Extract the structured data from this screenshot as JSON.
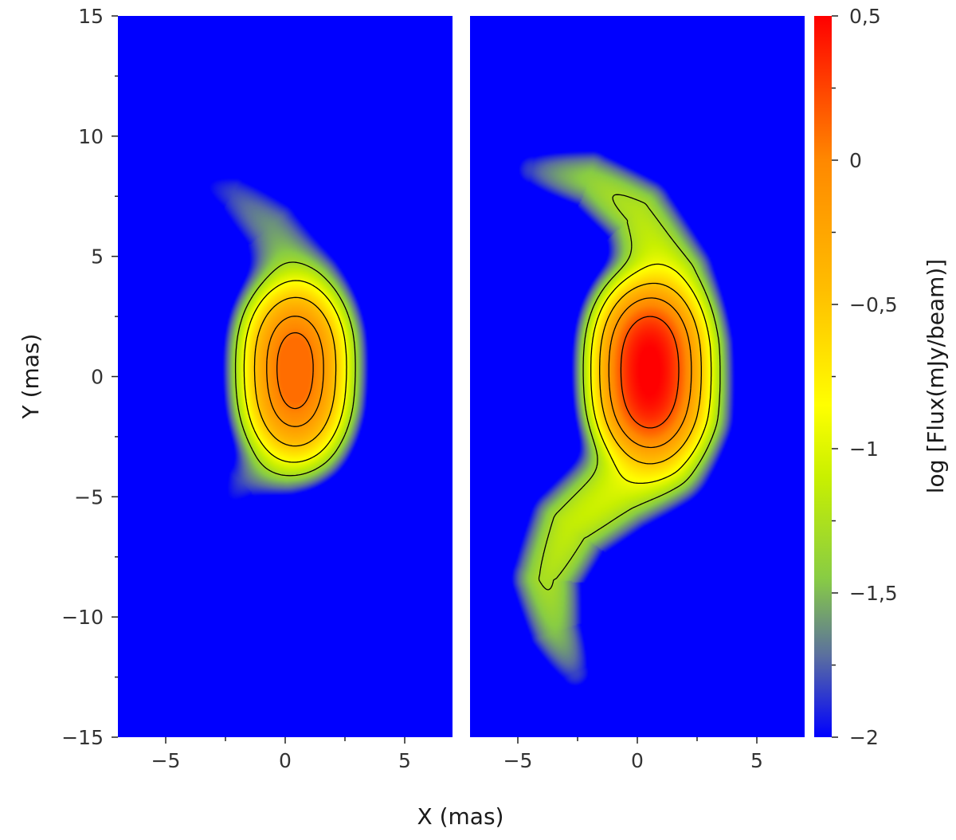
{
  "chart_data": {
    "type": "heatmap",
    "description_scale": "log",
    "panels": [
      {
        "name": "left",
        "xlim": [
          -7,
          7
        ],
        "ylim": [
          -15,
          15
        ],
        "max_log_flux": 0.1,
        "features": [
          {
            "kind": "arc",
            "points": [
              [
                -4.0,
                8.3
              ],
              [
                -2.2,
                7.6
              ],
              [
                -0.6,
                6.2
              ],
              [
                0.6,
                4.0
              ],
              [
                1.2,
                1.6
              ],
              [
                1.2,
                -1.0
              ],
              [
                0.8,
                -2.6
              ],
              [
                -0.4,
                -3.6
              ],
              [
                -1.8,
                -4.4
              ],
              [
                -2.8,
                -5.8
              ]
            ],
            "peak": -1.45
          },
          {
            "kind": "blob",
            "x": 0.4,
            "y": 1.2,
            "peak": 0.1
          },
          {
            "kind": "blob",
            "x": 0.4,
            "y": -0.9,
            "peak": 0.05
          }
        ],
        "contour_levels": [
          -1.3,
          -0.9,
          -0.5,
          -0.15,
          0.05
        ]
      },
      {
        "name": "right",
        "xlim": [
          -7,
          7
        ],
        "ylim": [
          -15,
          15
        ],
        "max_log_flux": 0.5,
        "features": [
          {
            "kind": "arc",
            "points": [
              [
                -4.4,
                8.6
              ],
              [
                -2.0,
                8.2
              ],
              [
                0.0,
                6.8
              ],
              [
                1.3,
                4.2
              ],
              [
                1.8,
                1.2
              ],
              [
                1.8,
                -1.6
              ],
              [
                1.0,
                -3.4
              ],
              [
                -0.8,
                -4.6
              ],
              [
                -2.8,
                -6.2
              ],
              [
                -3.8,
                -8.4
              ],
              [
                -3.4,
                -10.6
              ],
              [
                -2.6,
                -12.3
              ]
            ],
            "peak": -1.0
          },
          {
            "kind": "blob",
            "x": 0.5,
            "y": 1.2,
            "peak": 0.45
          },
          {
            "kind": "blob",
            "x": 0.5,
            "y": -0.9,
            "peak": 0.42
          }
        ],
        "contour_levels": [
          -1.3,
          -0.9,
          -0.5,
          -0.15,
          0.2
        ]
      }
    ],
    "colorbar": {
      "min": -2,
      "max": 0.5,
      "ticks": [
        "0,5",
        "0",
        "−0,5",
        "−1",
        "−1,5",
        "−2"
      ],
      "tick_values": [
        0.5,
        0,
        -0.5,
        -1,
        -1.5,
        -2
      ],
      "label": "log [Flux(mJy/beam)]",
      "colormap": [
        {
          "v": -2.0,
          "color": "#0000ff"
        },
        {
          "v": -1.72,
          "color": "#5a6ea0"
        },
        {
          "v": -1.45,
          "color": "#88cc44"
        },
        {
          "v": -1.1,
          "color": "#c8f000"
        },
        {
          "v": -0.85,
          "color": "#ffff00"
        },
        {
          "v": -0.45,
          "color": "#ffbe00"
        },
        {
          "v": 0.0,
          "color": "#ff8800"
        },
        {
          "v": 0.5,
          "color": "#ff0000"
        }
      ]
    },
    "x_ticks": [
      {
        "value": -5,
        "label": "−5"
      },
      {
        "value": 0,
        "label": "0"
      },
      {
        "value": 5,
        "label": "5"
      }
    ],
    "y_ticks": [
      {
        "value": 15,
        "label": "15"
      },
      {
        "value": 10,
        "label": "10"
      },
      {
        "value": 5,
        "label": "5"
      },
      {
        "value": 0,
        "label": "0"
      },
      {
        "value": -5,
        "label": "−5"
      },
      {
        "value": -10,
        "label": "−10"
      },
      {
        "value": -15,
        "label": "−15"
      }
    ],
    "xlabel": "X (mas)",
    "ylabel": "Y (mas)"
  }
}
